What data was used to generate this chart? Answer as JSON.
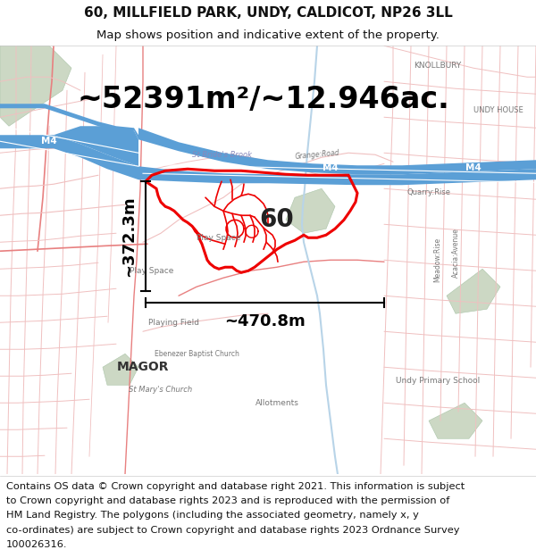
{
  "title_line1": "60, MILLFIELD PARK, UNDY, CALDICOT, NP26 3LL",
  "title_line2": "Map shows position and indicative extent of the property.",
  "area_text": "~52391m²/~12.946ac.",
  "dim1_text": "~372.3m",
  "dim2_text": "~470.8m",
  "number_text": "60",
  "footer_lines": [
    "Contains OS data © Crown copyright and database right 2021. This information is subject",
    "to Crown copyright and database rights 2023 and is reproduced with the permission of",
    "HM Land Registry. The polygons (including the associated geometry, namely x, y",
    "co-ordinates) are subject to Crown copyright and database rights 2023 Ordnance Survey",
    "100026316."
  ],
  "title_fontsize": 11,
  "subtitle_fontsize": 9.5,
  "area_fontsize": 24,
  "dim_fontsize": 13,
  "number_fontsize": 20,
  "footer_fontsize": 8.2,
  "bg_color": "#ffffff",
  "map_bg": "#ffffff",
  "road_pink": "#f0c0c0",
  "road_red": "#e88080",
  "highlight_red": "#ee0000",
  "m4_blue": "#5b9fd6",
  "green1": "#ccdcc8",
  "green2": "#d8e8d0",
  "label_gray": "#777777",
  "label_dark": "#444444"
}
